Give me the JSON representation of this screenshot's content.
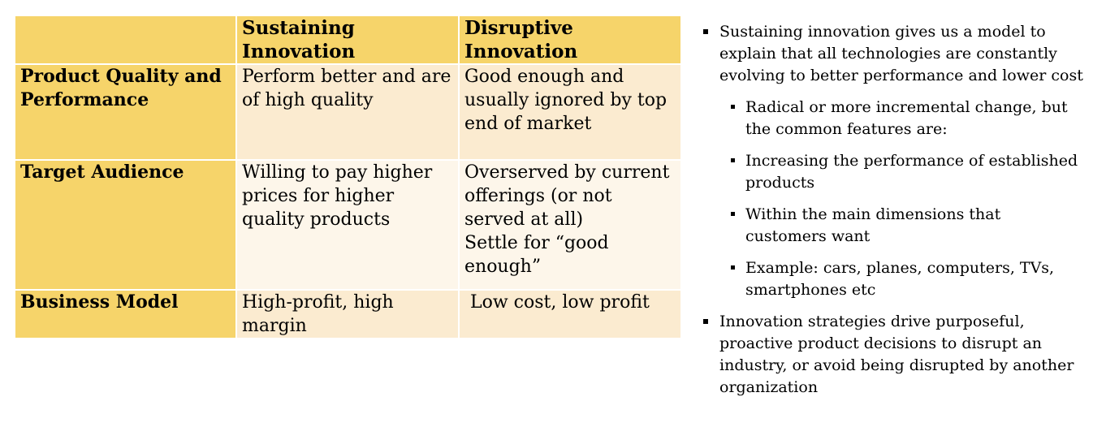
{
  "table": {
    "header": [
      "Sustaining Innovation",
      "Disruptive Innovation"
    ],
    "rows": [
      {
        "label": "Product Quality and Performance",
        "cells": [
          [
            "Perform better and are of high quality"
          ],
          [
            "Good enough and usually ignored by top end of market"
          ]
        ]
      },
      {
        "label": "Target Audience",
        "cells": [
          [
            "Willing to pay higher prices for higher quality products"
          ],
          [
            "Overserved by current offerings (or not served at all)",
            "Settle for “good enough”"
          ]
        ]
      },
      {
        "label": "Business Model",
        "cells": [
          [
            "High-profit, high margin"
          ],
          [
            " Low cost, low profit"
          ]
        ]
      }
    ]
  },
  "bullets": [
    {
      "text": "Sustaining innovation gives us a model to explain that all technologies are constantly evolving to better performance and lower cost",
      "sub": [
        "Radical or more incremental change, but the common features are:",
        "Increasing the performance of established products",
        "Within the main dimensions that customers want",
        "Example: cars, planes, computers, TVs, smartphones etc"
      ]
    },
    {
      "text": "Innovation strategies drive purposeful, proactive product decisions to disrupt an industry, or avoid being disrupted by another organization",
      "sub": []
    }
  ]
}
